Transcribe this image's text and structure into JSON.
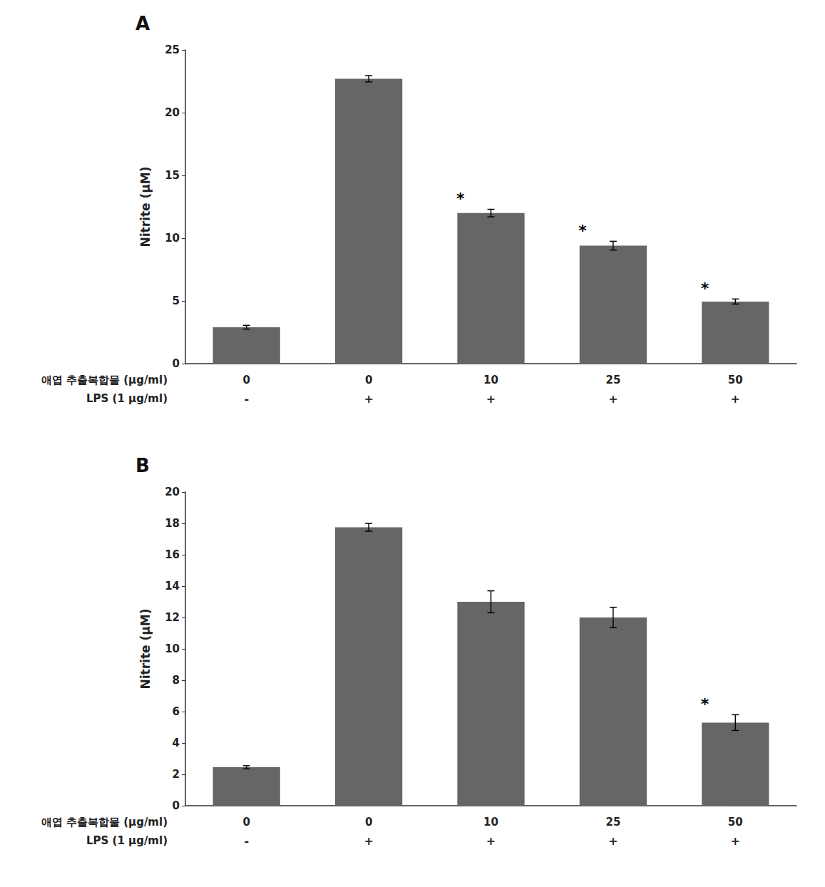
{
  "chart_data": [
    {
      "type": "bar",
      "title": "A",
      "categories": [
        "0",
        "0",
        "10",
        "25",
        "50"
      ],
      "category_label": "애엽 추출복합물 (μg/ml)",
      "categories2": [
        "-",
        "+",
        "+",
        "+",
        "+"
      ],
      "category2_label": "LPS (1 μg/ml)",
      "values": [
        2.9,
        22.7,
        12.0,
        9.4,
        4.95
      ],
      "errors": [
        0.15,
        0.25,
        0.3,
        0.35,
        0.2
      ],
      "significant": [
        false,
        false,
        true,
        true,
        true
      ],
      "significance_label": "*",
      "ylabel": "Nitrite (μM)",
      "color": "#666666",
      "ylim": [
        0,
        25
      ],
      "yticks": [
        0,
        5,
        10,
        15,
        20,
        25
      ],
      "grid": false
    },
    {
      "type": "bar",
      "title": "B",
      "categories": [
        "0",
        "0",
        "10",
        "25",
        "50"
      ],
      "category_label": "애엽 추출복합물 (μg/ml)",
      "categories2": [
        "-",
        "+",
        "+",
        "+",
        "+"
      ],
      "category2_label": "LPS (1 μg/ml)",
      "values": [
        2.45,
        17.75,
        13.0,
        12.0,
        5.3
      ],
      "errors": [
        0.1,
        0.25,
        0.7,
        0.65,
        0.5
      ],
      "significant": [
        false,
        false,
        false,
        false,
        true
      ],
      "significance_label": "*",
      "ylabel": "Nitrite (μM)",
      "color": "#666666",
      "ylim": [
        0,
        20
      ],
      "yticks": [
        0,
        2,
        4,
        6,
        8,
        10,
        12,
        14,
        16,
        18,
        20
      ],
      "grid": false
    }
  ]
}
